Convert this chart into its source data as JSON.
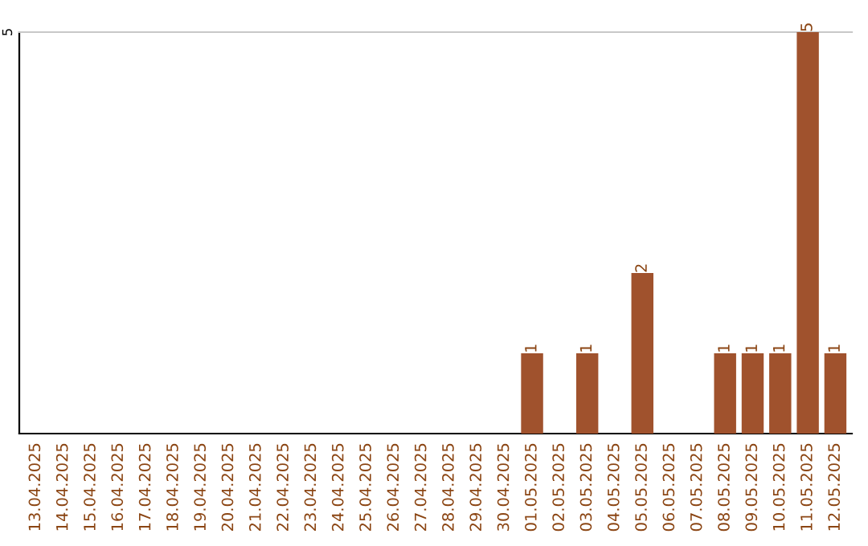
{
  "chart_data": {
    "type": "bar",
    "categories": [
      "13.04.2025",
      "14.04.2025",
      "15.04.2025",
      "16.04.2025",
      "17.04.2025",
      "18.04.2025",
      "19.04.2025",
      "20.04.2025",
      "21.04.2025",
      "22.04.2025",
      "23.04.2025",
      "24.04.2025",
      "25.04.2025",
      "26.04.2025",
      "27.04.2025",
      "28.04.2025",
      "29.04.2025",
      "30.04.2025",
      "01.05.2025",
      "02.05.2025",
      "03.05.2025",
      "04.05.2025",
      "05.05.2025",
      "06.05.2025",
      "07.05.2025",
      "08.05.2025",
      "09.05.2025",
      "10.05.2025",
      "11.05.2025",
      "12.05.2025"
    ],
    "values": [
      null,
      null,
      null,
      null,
      null,
      null,
      null,
      null,
      null,
      null,
      null,
      null,
      null,
      null,
      null,
      null,
      null,
      null,
      1,
      null,
      1,
      null,
      2,
      null,
      null,
      1,
      1,
      1,
      5,
      1
    ],
    "data_labels": true,
    "color": "#a0522d",
    "ylim": [
      0,
      5
    ],
    "yticks": [
      5
    ]
  }
}
